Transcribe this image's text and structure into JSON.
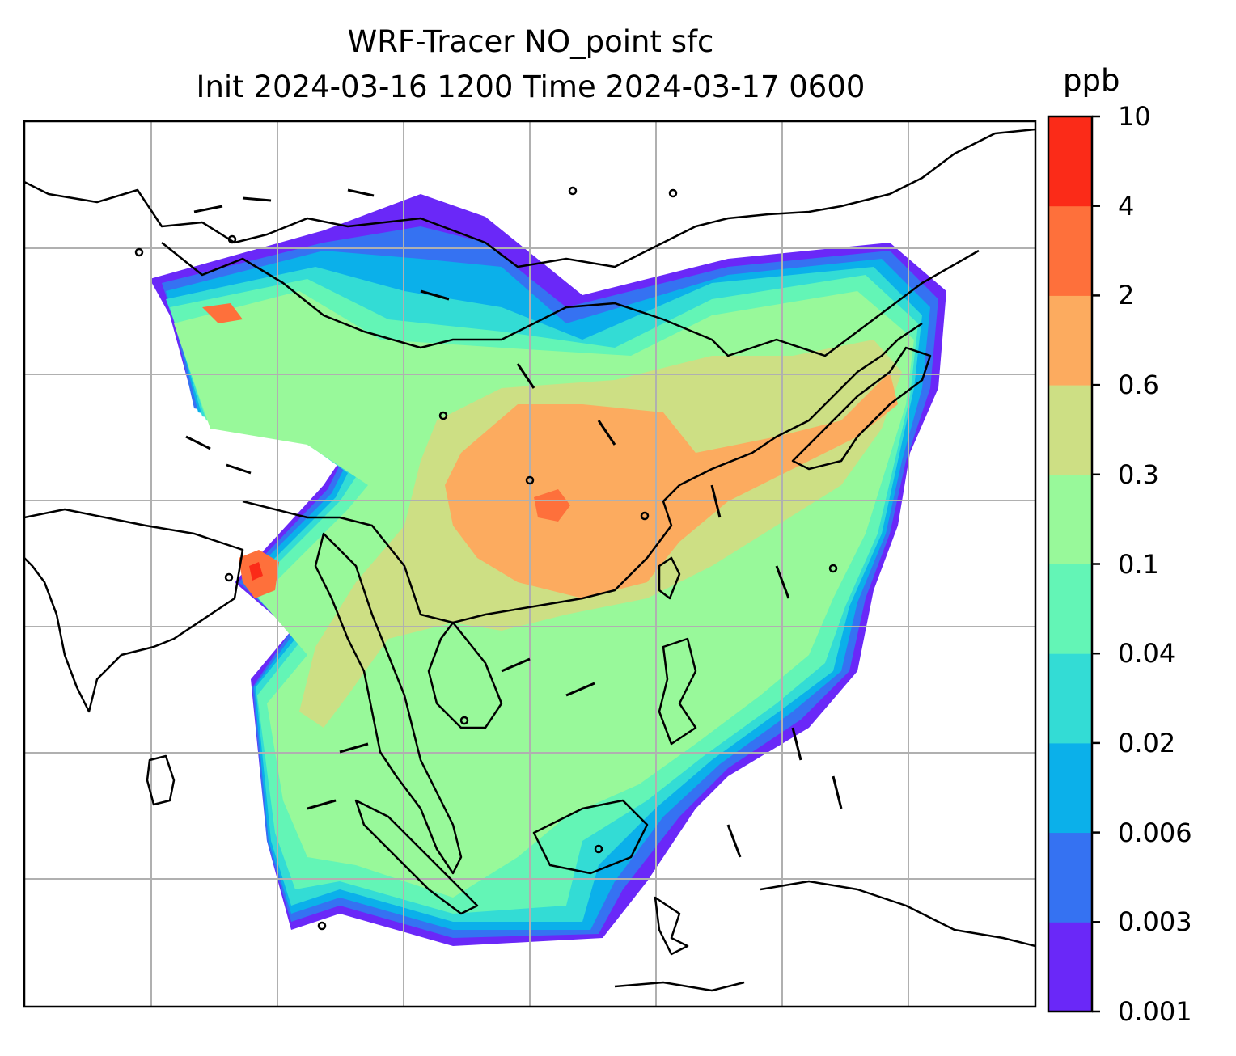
{
  "title_line1": "WRF-Tracer NO_point sfc",
  "title_line2": "Init 2024-03-16 1200 Time 2024-03-17 0600",
  "colorbar": {
    "unit": "ppb",
    "levels": [
      "0.001",
      "0.003",
      "0.006",
      "0.02",
      "0.04",
      "0.1",
      "0.3",
      "0.6",
      "2",
      "4",
      "10"
    ],
    "colors": [
      "#6a28f8",
      "#3572f2",
      "#0bb0ea",
      "#33dcd5",
      "#63f5b6",
      "#98f99a",
      "#cddf84",
      "#fcab5f",
      "#fe703b",
      "#fb2b18"
    ]
  },
  "map": {
    "field": "NO_point",
    "level": "sfc",
    "overlay": "wind barbs",
    "gridlines": true,
    "coastlines": true
  }
}
